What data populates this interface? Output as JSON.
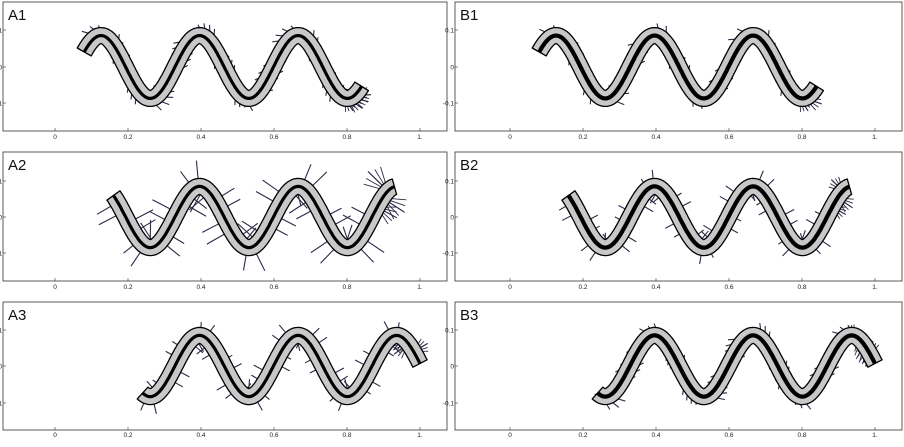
{
  "panels": [
    {
      "id": "A1",
      "label": "A1",
      "x_ticks": [
        "0",
        "0.2",
        "0.4",
        "0.6",
        "0.8",
        "1."
      ],
      "y_ticks": [
        "0.1",
        "0",
        "-0.1"
      ],
      "spine_start": 0.08,
      "spine_end": 0.84,
      "brush": "diagonal-dense"
    },
    {
      "id": "A2",
      "label": "A2",
      "x_ticks": [
        "0",
        "0.2",
        "0.4",
        "0.6",
        "0.8",
        "1."
      ],
      "y_ticks": [
        "0.1",
        "0",
        "-0.1"
      ],
      "spine_start": 0.16,
      "spine_end": 0.93,
      "brush": "normal-long"
    },
    {
      "id": "A3",
      "label": "A3",
      "x_ticks": [
        "0",
        "0.2",
        "0.4",
        "0.6",
        "0.8",
        "1."
      ],
      "y_ticks": [
        "0.1",
        "0",
        "-0.1"
      ],
      "spine_start": 0.24,
      "spine_end": 1.0,
      "brush": "normal-medium"
    },
    {
      "id": "B1",
      "label": "B1",
      "x_ticks": [
        "0",
        "0.2",
        "0.4",
        "0.6",
        "0.8",
        "1."
      ],
      "y_ticks": [
        "0.1",
        "0",
        "-0.1"
      ],
      "spine_start": 0.08,
      "spine_end": 0.84,
      "brush": "diagonal-medium"
    },
    {
      "id": "B2",
      "label": "B2",
      "x_ticks": [
        "0",
        "0.2",
        "0.4",
        "0.6",
        "0.8",
        "1."
      ],
      "y_ticks": [
        "0.1",
        "0",
        "-0.1"
      ],
      "spine_start": 0.16,
      "spine_end": 0.93,
      "brush": "normal-medium"
    },
    {
      "id": "B3",
      "label": "B3",
      "x_ticks": [
        "0",
        "0.2",
        "0.4",
        "0.6",
        "0.8",
        "1."
      ],
      "y_ticks": [
        "0.1",
        "0",
        "-0.1"
      ],
      "spine_start": 0.24,
      "spine_end": 1.0,
      "brush": "diagonal-dense"
    }
  ],
  "colors": {
    "body_fill": "#c8c8c8",
    "outline": "#000000",
    "spine": "#000000",
    "brush": "#2b2a4a",
    "frame": "#333333"
  }
}
